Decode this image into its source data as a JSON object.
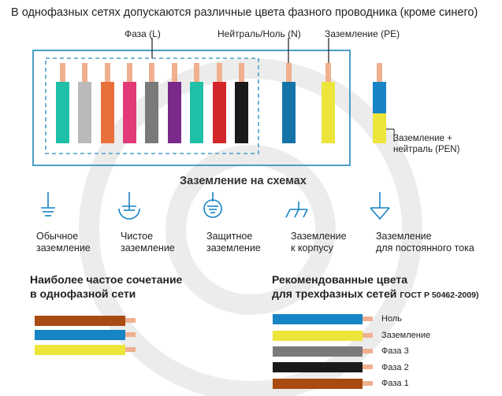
{
  "header": {
    "title": "В однофазных сетях допускаются различные цвета фазного проводника (кроме синего)"
  },
  "colors": {
    "frame": "#4a9fc6",
    "copper": "#f0b090",
    "lead": "#1a1a1a",
    "watermark": "#ececec"
  },
  "conductors": {
    "phase_label": "Фаза (L)",
    "neutral_label": "Нейтраль/Ноль (N)",
    "pe_label": "Заземление (PE)",
    "pen_label_line1": "Заземление +",
    "pen_label_line2": "нейтраль (PEN)",
    "phase_colors": [
      "#1fbfa8",
      "#b9b9b9",
      "#e8703c",
      "#e23a78",
      "#7a7a7a",
      "#7a2a8a",
      "#1fbfa8",
      "#d3262a",
      "#1a1a1a"
    ],
    "neutral_color": "#1474a8",
    "pe_color": "#ede53a",
    "pen_colors": [
      "#1784c5",
      "#ede53a"
    ]
  },
  "grounding": {
    "title": "Заземление на схемах",
    "symbols": [
      {
        "icon": "earth-ground-icon",
        "line1": "Обычное",
        "line2": "заземление"
      },
      {
        "icon": "clean-ground-icon",
        "line1": "Чистое",
        "line2": "заземление"
      },
      {
        "icon": "protective-ground-icon",
        "line1": "Защитное",
        "line2": "заземление"
      },
      {
        "icon": "chassis-ground-icon",
        "line1": "Заземление",
        "line2": "к корпусу"
      },
      {
        "icon": "dc-ground-icon",
        "line1": "Заземление",
        "line2": "для постоянного тока"
      }
    ]
  },
  "single_phase": {
    "title_line1": "Наиболее частое сочетание",
    "title_line2": "в однофазной сети",
    "wire_colors": [
      "#a84b12",
      "#1784c5",
      "#ede53a"
    ]
  },
  "three_phase": {
    "title_line1": "Рекомендованные цвета",
    "title_line2": "для трехфазных сетей",
    "gost": "ГОСТ Р 50462-2009)",
    "wires": [
      {
        "label": "Ноль",
        "color": "#1784c5"
      },
      {
        "label": "Заземление",
        "color": "#ede53a"
      },
      {
        "label": "Фаза 3",
        "color": "#7a7a7a"
      },
      {
        "label": "Фаза 2",
        "color": "#1a1a1a"
      },
      {
        "label": "Фаза 1",
        "color": "#a84b12"
      }
    ]
  }
}
